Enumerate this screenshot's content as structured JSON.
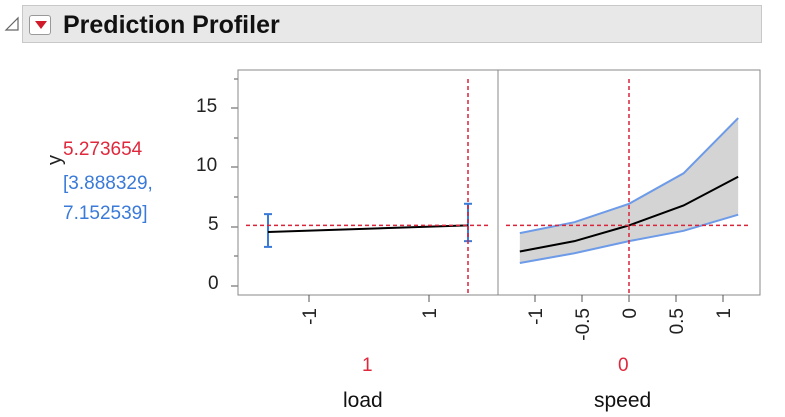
{
  "title": "Prediction Profiler",
  "colors": {
    "current_value": "#e0283c",
    "ci": "#3a7ad8",
    "curve": "#000000",
    "band_fill": "#d4d4d4",
    "crosshair": "#d9243a"
  },
  "response": {
    "name": "y",
    "prediction": "5.273654",
    "ci_line1": "[3.888329,",
    "ci_line2": "7.152539]"
  },
  "y_axis": {
    "ticks": [
      "15",
      "10",
      "5",
      "0"
    ]
  },
  "factors": [
    {
      "name": "load",
      "current_value": "1",
      "ticks": [
        "-1",
        "1"
      ]
    },
    {
      "name": "speed",
      "current_value": "0",
      "ticks": [
        "-1",
        "-0.5",
        "0",
        "0.5",
        "1"
      ]
    }
  ],
  "chart_data": [
    {
      "type": "line",
      "title": "",
      "xlabel": "load",
      "ylabel": "y",
      "ylim": [
        0,
        18
      ],
      "xlim": [
        -1.3,
        1.3
      ],
      "x": [
        -1,
        1
      ],
      "series": [
        {
          "values": [
            4.7,
            5.27
          ]
        }
      ],
      "ci_lower": [
        3.4,
        3.9
      ],
      "ci_upper": [
        6.25,
        7.15
      ],
      "current": {
        "x": 1,
        "y": 5.27
      }
    },
    {
      "type": "line",
      "title": "",
      "xlabel": "speed",
      "ylabel": "y",
      "ylim": [
        0,
        18
      ],
      "xlim": [
        -1.2,
        1.2
      ],
      "x": [
        -1,
        -0.5,
        0,
        0.5,
        1
      ],
      "series": [
        {
          "values": [
            3.0,
            3.9,
            5.27,
            7.0,
            9.5
          ]
        }
      ],
      "ci_lower": [
        2.0,
        2.85,
        3.9,
        4.8,
        6.2
      ],
      "ci_upper": [
        4.6,
        5.55,
        7.15,
        9.8,
        14.6
      ],
      "current": {
        "x": 0,
        "y": 5.27
      }
    }
  ]
}
